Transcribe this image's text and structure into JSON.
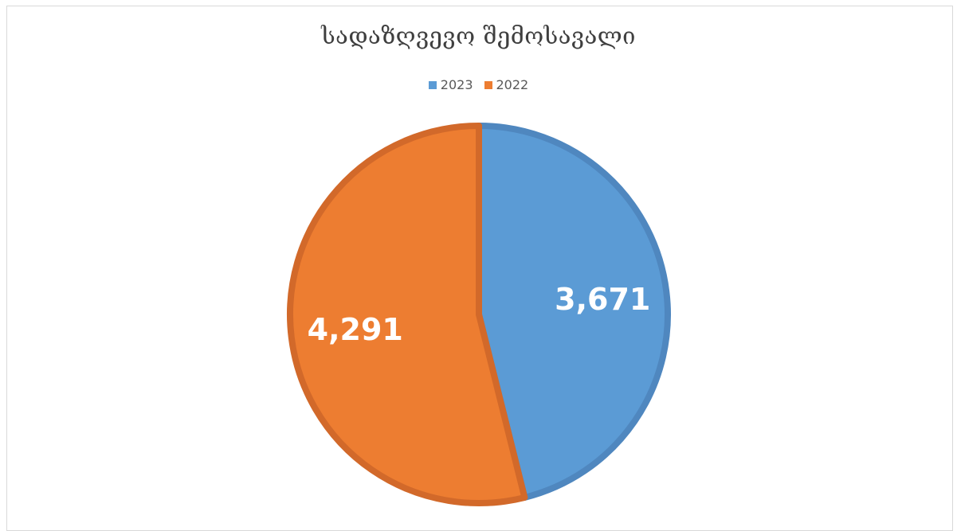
{
  "chart_data": {
    "type": "pie",
    "title": "სადაზღვევო შემოსავალი",
    "legend_position": "top",
    "slices": [
      {
        "label": "2023",
        "value": 3671,
        "display": "3,671",
        "color": "#5b9bd5",
        "edge": "#4f87bf"
      },
      {
        "label": "2022",
        "value": 4291,
        "display": "4,291",
        "color": "#ed7d31",
        "edge": "#d2692a"
      }
    ]
  }
}
